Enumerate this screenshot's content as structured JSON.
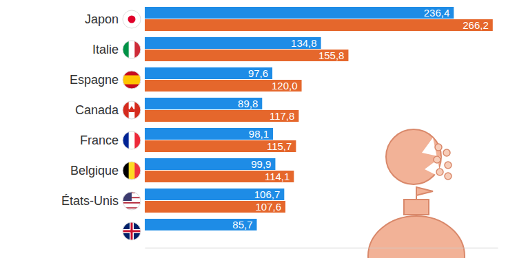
{
  "chart_data": {
    "type": "bar",
    "orientation": "horizontal",
    "data_labels": true,
    "tick_labels": false,
    "categories": [
      "Japon",
      "Italie",
      "Espagne",
      "Canada",
      "France",
      "Belgique",
      "États-Unis",
      null
    ],
    "series": [
      {
        "color": "#1e8ce6",
        "values": [
          236.4,
          134.8,
          97.6,
          89.8,
          98.1,
          99.9,
          106.7,
          85.7
        ],
        "value_labels": [
          "236,4",
          "134,8",
          "97,6",
          "89,8",
          "98,1",
          "99,9",
          "106,7",
          "85,7"
        ]
      },
      {
        "color": "#e5672c",
        "values": [
          266.2,
          155.8,
          120.0,
          117.8,
          115.7,
          114.1,
          107.6,
          null
        ],
        "value_labels": [
          "266,2",
          "155,8",
          "120,0",
          "117,8",
          "115,7",
          "114,1",
          "107,6",
          null
        ]
      }
    ],
    "xlim": [
      0,
      270
    ],
    "xticks": []
  }
}
